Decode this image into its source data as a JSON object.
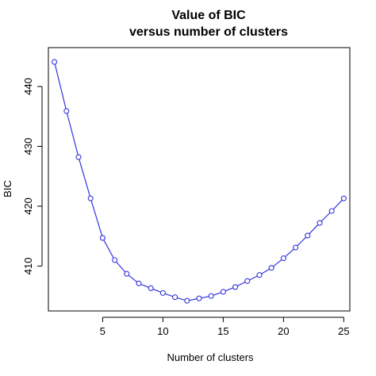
{
  "chart_data": {
    "type": "line",
    "title": "Value of BIC",
    "subtitle": "versus number of clusters",
    "xlabel": "Number of clusters",
    "ylabel": "BIC",
    "xlim": [
      0.5,
      25.5
    ],
    "ylim": [
      402.5,
      446.5
    ],
    "xticks": [
      5,
      10,
      15,
      20,
      25
    ],
    "yticks": [
      410,
      420,
      430,
      440
    ],
    "grid": false,
    "legend": "none",
    "series": [
      {
        "color": "#3333dd",
        "marker": "open-circle",
        "x": [
          1,
          2,
          3,
          4,
          5,
          6,
          7,
          8,
          9,
          10,
          11,
          12,
          13,
          14,
          15,
          16,
          17,
          18,
          19,
          20,
          21,
          22,
          23,
          24,
          25
        ],
        "y": [
          444.1,
          435.9,
          428.2,
          421.3,
          414.7,
          411.0,
          408.7,
          407.1,
          406.3,
          405.5,
          404.8,
          404.2,
          404.6,
          405.0,
          405.7,
          406.5,
          407.5,
          408.5,
          409.7,
          411.3,
          413.1,
          415.1,
          417.2,
          419.2,
          421.3
        ]
      }
    ]
  }
}
